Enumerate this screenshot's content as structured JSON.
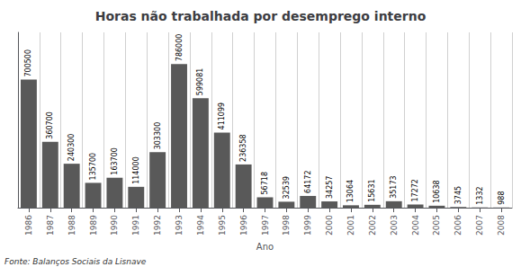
{
  "chart_data": {
    "type": "bar",
    "title": "Horas não trabalhada por desemprego interno",
    "xlabel": "Ano",
    "annotations": [
      "Fonte: Balanços Sociais da Lisnave"
    ],
    "categories": [
      "1986",
      "1987",
      "1988",
      "1989",
      "1990",
      "1991",
      "1992",
      "1993",
      "1994",
      "1995",
      "1996",
      "1997",
      "1998",
      "1999",
      "2000",
      "2001",
      "2002",
      "2003",
      "2004",
      "2005",
      "2006",
      "2007",
      "2008"
    ],
    "values": [
      700500,
      360700,
      240300,
      135700,
      163700,
      114000,
      303300,
      786000,
      599081,
      411099,
      236358,
      56718,
      32539,
      64172,
      34257,
      13064,
      15631,
      35173,
      17272,
      10638,
      3745,
      1332,
      988
    ],
    "color": "#595959",
    "ylim": [
      0,
      958920
    ],
    "yticks": [],
    "tick_labels": "x",
    "data_labels": true,
    "grid": true
  }
}
